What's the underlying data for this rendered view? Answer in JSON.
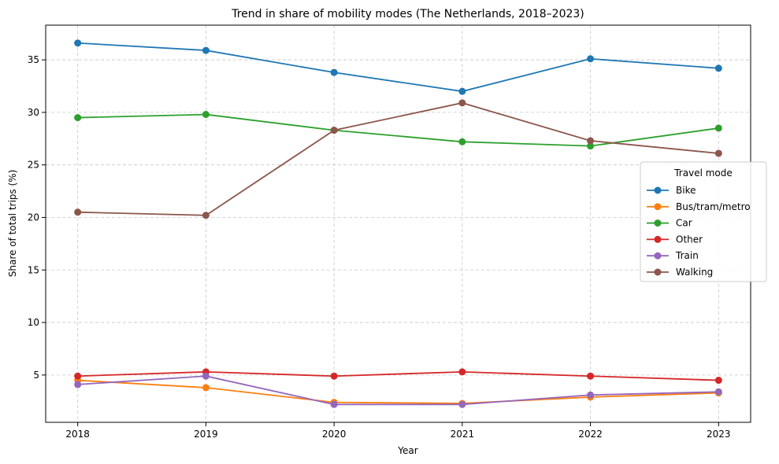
{
  "chart_data": {
    "type": "line",
    "title": "Trend in share of mobility modes (The Netherlands, 2018–2023)",
    "xlabel": "Year",
    "ylabel": "Share of total trips (%)",
    "x": [
      2018,
      2019,
      2020,
      2021,
      2022,
      2023
    ],
    "xlim": [
      2017.75,
      2023.25
    ],
    "ylim": [
      0.5,
      38.3
    ],
    "yticks": [
      5,
      10,
      15,
      20,
      25,
      30,
      35
    ],
    "grid": true,
    "legend": {
      "title": "Travel mode",
      "placement": "center-right"
    },
    "series": [
      {
        "name": "Bike",
        "color": "#1f77b4",
        "values": [
          36.6,
          35.9,
          33.8,
          32.0,
          35.1,
          34.2
        ]
      },
      {
        "name": "Bus/tram/metro",
        "color": "#ff7f0e",
        "values": [
          4.5,
          3.8,
          2.4,
          2.3,
          2.9,
          3.3
        ]
      },
      {
        "name": "Car",
        "color": "#2ca02c",
        "values": [
          29.5,
          29.8,
          28.3,
          27.2,
          26.8,
          28.5
        ]
      },
      {
        "name": "Other",
        "color": "#d62728",
        "values": [
          4.9,
          5.3,
          4.9,
          5.3,
          4.9,
          4.5
        ]
      },
      {
        "name": "Train",
        "color": "#9467bd",
        "values": [
          4.1,
          4.9,
          2.2,
          2.2,
          3.1,
          3.4
        ]
      },
      {
        "name": "Walking",
        "color": "#8c564b",
        "values": [
          20.5,
          20.2,
          28.3,
          30.9,
          27.3,
          26.1
        ]
      }
    ]
  }
}
